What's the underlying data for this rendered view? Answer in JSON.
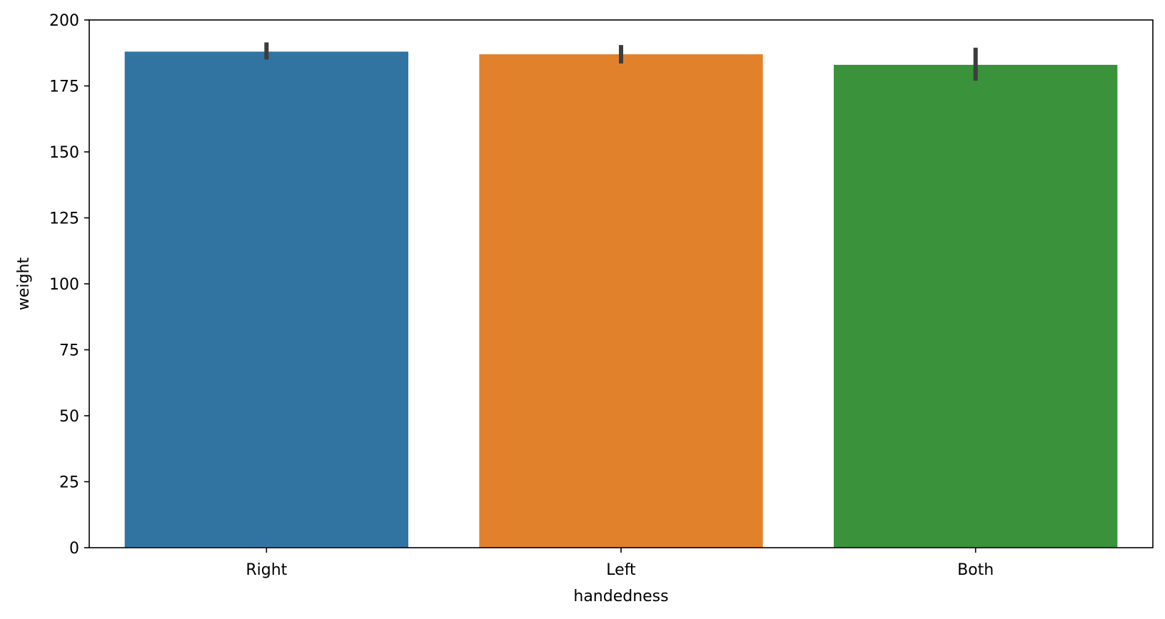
{
  "chart_data": {
    "type": "bar",
    "xlabel": "handedness",
    "ylabel": "weight",
    "categories": [
      "Right",
      "Left",
      "Both"
    ],
    "values": [
      188,
      187,
      183
    ],
    "error_low": [
      185,
      183.5,
      177
    ],
    "error_high": [
      191.5,
      190.5,
      189.5
    ],
    "colors": [
      "#3274a1",
      "#e1812c",
      "#3a923a"
    ],
    "error_color": "#3d3d3d",
    "ylim": [
      0,
      200
    ],
    "yticks": [
      0,
      25,
      50,
      75,
      100,
      125,
      150,
      175,
      200
    ],
    "grid": false,
    "legend": "none"
  }
}
